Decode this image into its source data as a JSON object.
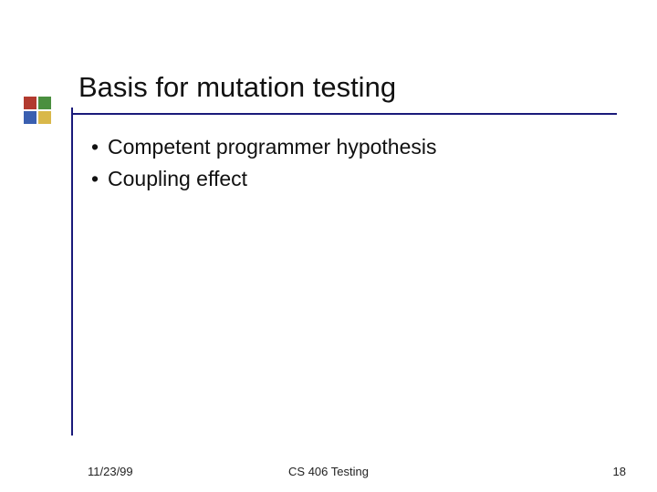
{
  "title": "Basis for mutation testing",
  "bullets": [
    "Competent programmer hypothesis",
    "Coupling effect"
  ],
  "footer": {
    "date": "11/23/99",
    "course": "CS 406 Testing",
    "page": "18"
  },
  "decor_colors": {
    "tl": "#b23a2f",
    "tr": "#4a8f3f",
    "bl": "#3a5fb0",
    "br": "#d9b84a"
  },
  "rule_color": "#1a1a7a",
  "text_color": "#111111",
  "title_fontsize": 31,
  "body_fontsize": 23,
  "footer_fontsize": 13
}
